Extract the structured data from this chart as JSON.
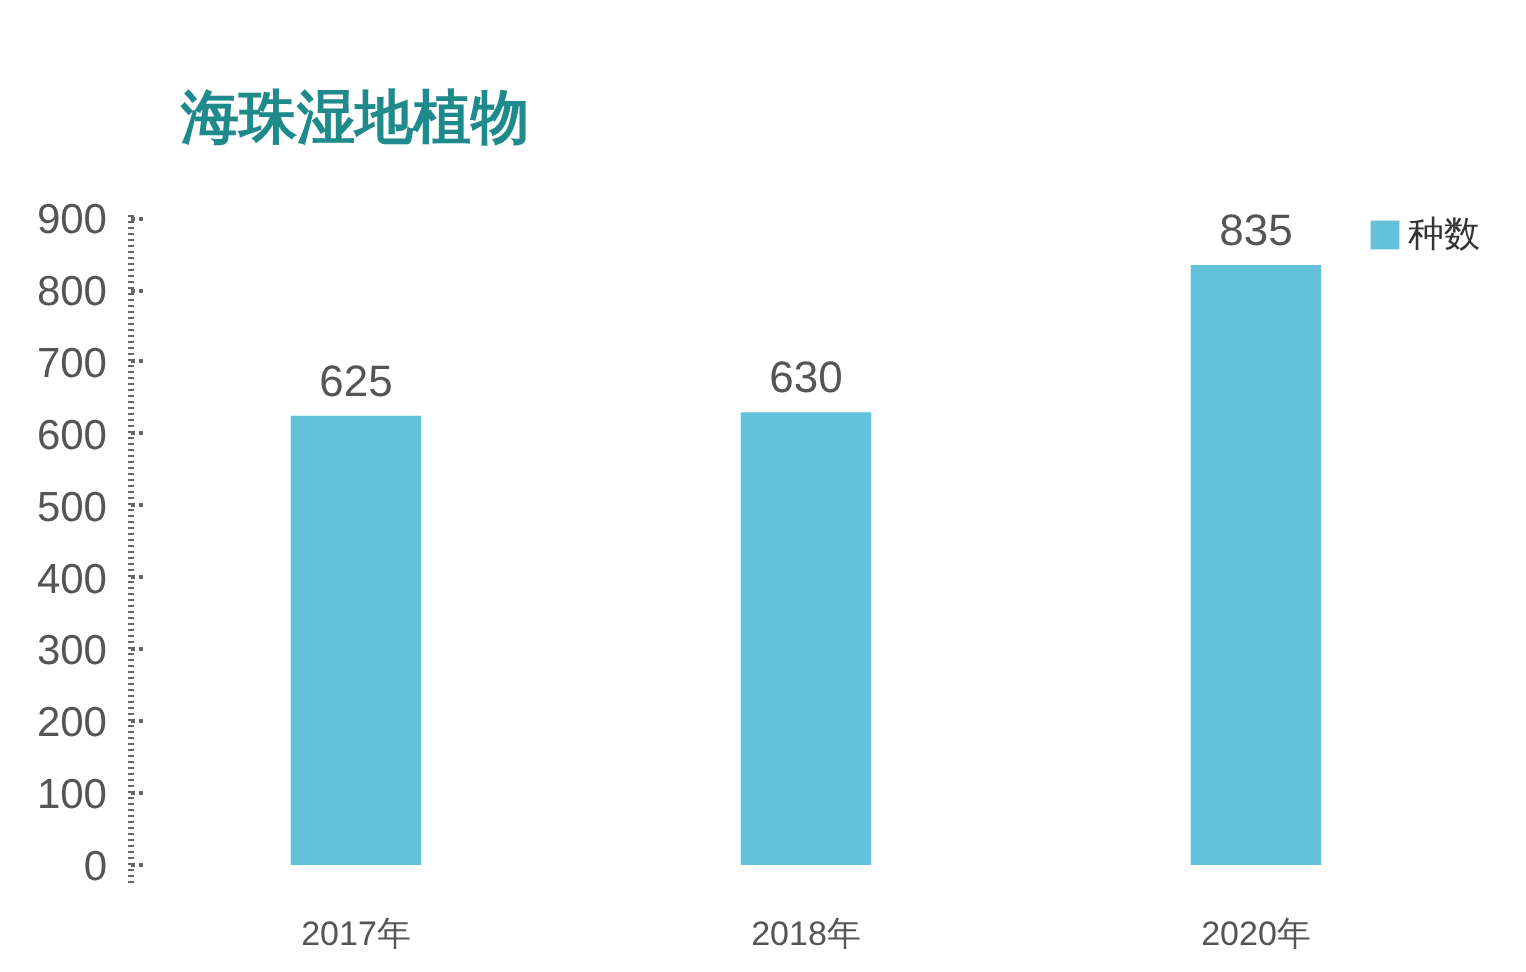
{
  "chart_data": {
    "type": "bar",
    "title": "海珠湿地植物",
    "categories": [
      "2017年",
      "2018年",
      "2020年"
    ],
    "series": [
      {
        "name": "种数",
        "color": "#63c2d9",
        "values": [
          625,
          630,
          835
        ]
      }
    ],
    "ylim": [
      -25,
      910
    ],
    "yticks": [
      0,
      100,
      200,
      300,
      400,
      500,
      600,
      700,
      800,
      900
    ],
    "data_labels": true,
    "legend": "top right",
    "grid": false
  }
}
